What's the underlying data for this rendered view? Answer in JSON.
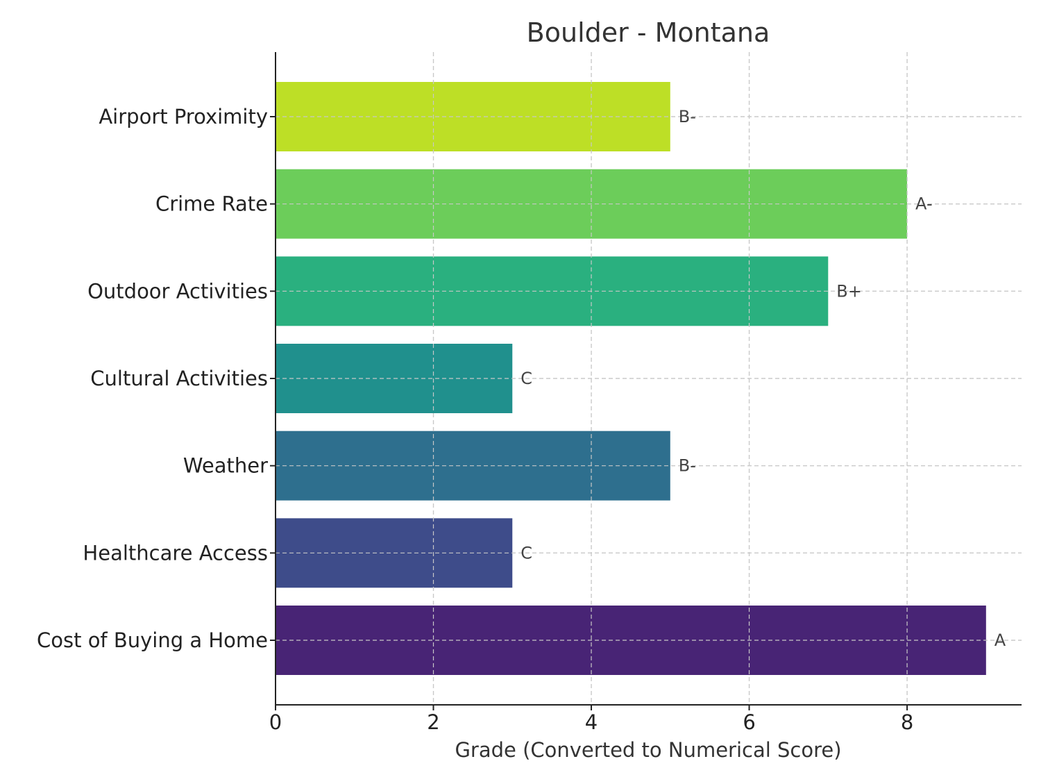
{
  "chart_data": {
    "type": "bar",
    "orientation": "horizontal",
    "title": "Boulder - Montana",
    "xlabel": "Grade (Converted to Numerical Score)",
    "ylabel": "",
    "xlim": [
      0,
      9.45
    ],
    "xticks": [
      0,
      2,
      4,
      6,
      8
    ],
    "grid": true,
    "categories": [
      "Airport Proximity",
      "Crime Rate",
      "Outdoor Activities",
      "Cultural Activities",
      "Weather",
      "Healthcare Access",
      "Cost of Buying a Home"
    ],
    "values": [
      5,
      8,
      7,
      3,
      5,
      3,
      9
    ],
    "bar_labels": [
      "B-",
      "A-",
      "B+",
      "C",
      "B-",
      "C",
      "A"
    ],
    "colors": [
      "#bddf26",
      "#6ccd5a",
      "#2ab07f",
      "#20908d",
      "#2e6f8e",
      "#3e4c8a",
      "#482475"
    ]
  }
}
